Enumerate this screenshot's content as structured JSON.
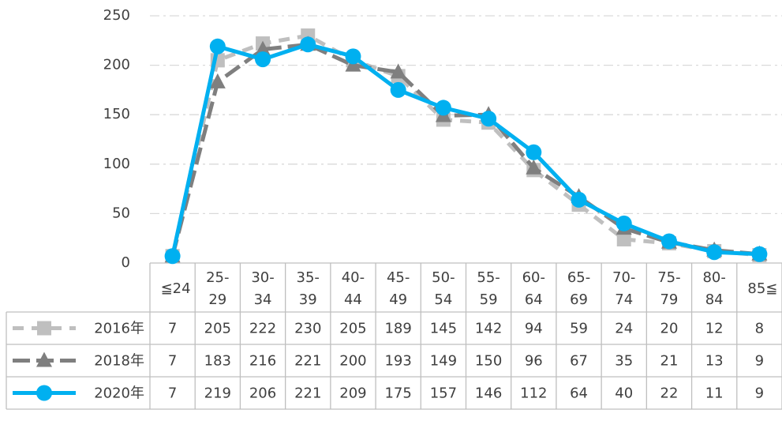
{
  "chart_data": {
    "type": "line",
    "categories": [
      "≦24",
      "25-29",
      "30-34",
      "35-39",
      "40-44",
      "45-49",
      "50-54",
      "55-59",
      "60-64",
      "65-69",
      "70-74",
      "75-79",
      "80-84",
      "85≦"
    ],
    "series": [
      {
        "name": "2016年",
        "color": "#bfbfbf",
        "dash": "14 10",
        "marker": "square",
        "values": [
          7,
          205,
          222,
          230,
          205,
          189,
          145,
          142,
          94,
          59,
          24,
          20,
          12,
          8
        ]
      },
      {
        "name": "2018年",
        "color": "#7f7f7f",
        "dash": "22 8",
        "marker": "triangle",
        "values": [
          7,
          183,
          216,
          221,
          200,
          193,
          149,
          150,
          96,
          67,
          35,
          21,
          13,
          9
        ]
      },
      {
        "name": "2020年",
        "color": "#00b0f0",
        "dash": "none",
        "marker": "circle",
        "values": [
          7,
          219,
          206,
          221,
          209,
          175,
          157,
          146,
          112,
          64,
          40,
          22,
          11,
          9
        ]
      }
    ],
    "ylim": [
      0,
      250
    ],
    "yticks": [
      0,
      50,
      100,
      150,
      200,
      250
    ],
    "grid": true,
    "data_table": true
  }
}
